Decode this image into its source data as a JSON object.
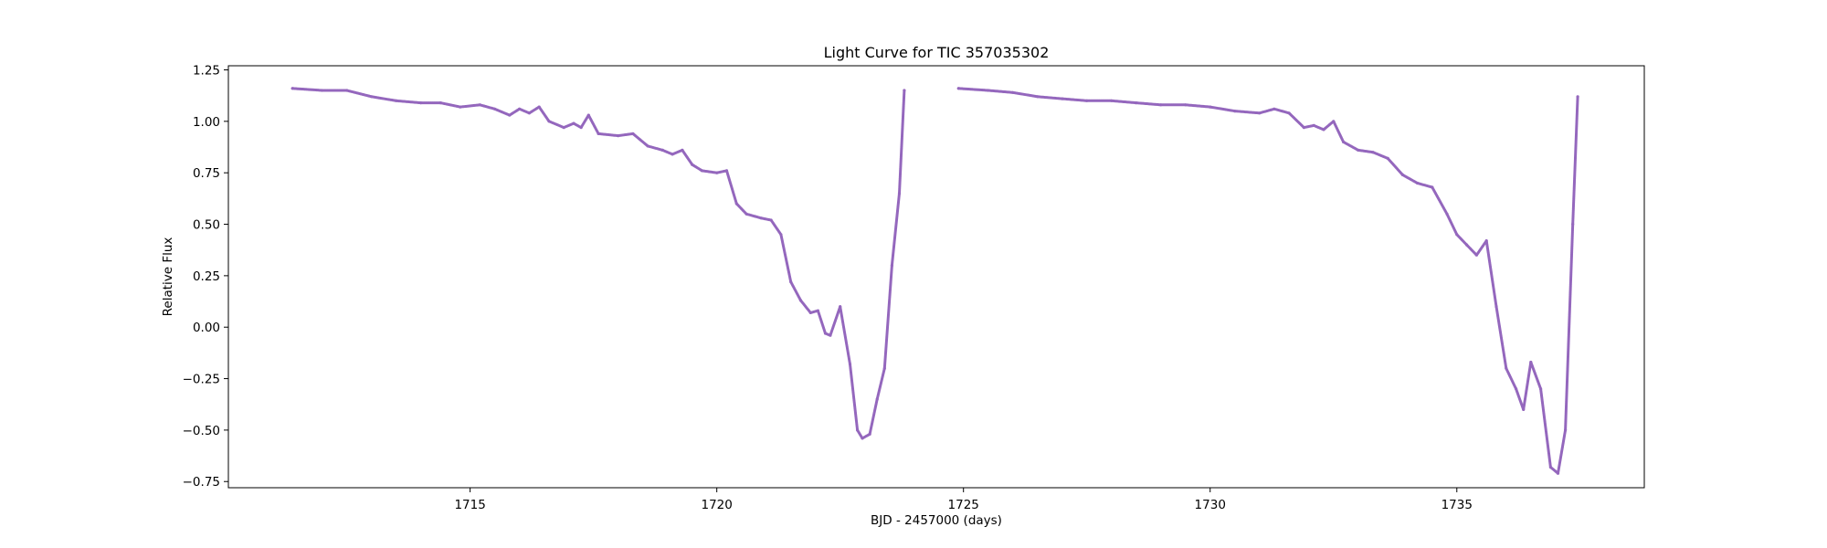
{
  "chart_data": {
    "type": "scatter",
    "title": "Light Curve for TIC 357035302",
    "xlabel": "BJD - 2457000 (days)",
    "ylabel": "Relative Flux",
    "xlim": [
      1710.1,
      1738.8
    ],
    "ylim": [
      -0.78,
      1.27
    ],
    "xticks": [
      1715,
      1720,
      1725,
      1730,
      1735
    ],
    "xtick_labels": [
      "1715",
      "1720",
      "1725",
      "1730",
      "1735"
    ],
    "yticks": [
      -0.75,
      -0.5,
      -0.25,
      0.0,
      0.25,
      0.5,
      0.75,
      1.0,
      1.25
    ],
    "ytick_labels": [
      "−0.75",
      "−0.50",
      "−0.25",
      "0.00",
      "0.25",
      "0.50",
      "0.75",
      "1.00",
      "1.25"
    ],
    "grid": false,
    "marker_color": "#9467bd",
    "series": [
      {
        "x": [
          1711.4,
          1712.0,
          1712.5,
          1713.0,
          1713.5,
          1714.0,
          1714.4,
          1714.8,
          1715.2,
          1715.5,
          1715.8,
          1716.0,
          1716.2,
          1716.4,
          1716.6,
          1716.9,
          1717.1,
          1717.25,
          1717.4,
          1717.6,
          1718.0,
          1718.3,
          1718.6,
          1718.9,
          1719.1,
          1719.3,
          1719.5,
          1719.7,
          1720.0,
          1720.2,
          1720.4,
          1720.6,
          1720.9,
          1721.1,
          1721.3,
          1721.5,
          1721.7,
          1721.9,
          1722.05,
          1722.2,
          1722.3,
          1722.5,
          1722.7,
          1722.85,
          1722.95,
          1723.1,
          1723.25,
          1723.4,
          1723.55,
          1723.7,
          1723.8
        ],
        "y": [
          1.16,
          1.15,
          1.15,
          1.12,
          1.1,
          1.09,
          1.09,
          1.07,
          1.08,
          1.06,
          1.03,
          1.06,
          1.04,
          1.07,
          1.0,
          0.97,
          0.99,
          0.97,
          1.03,
          0.94,
          0.93,
          0.94,
          0.88,
          0.86,
          0.84,
          0.86,
          0.79,
          0.76,
          0.75,
          0.76,
          0.6,
          0.55,
          0.53,
          0.52,
          0.45,
          0.22,
          0.13,
          0.07,
          0.08,
          -0.03,
          -0.04,
          0.1,
          -0.18,
          -0.5,
          -0.54,
          -0.52,
          -0.35,
          -0.2,
          0.3,
          0.65,
          1.15
        ]
      },
      {
        "x": [
          1724.9,
          1725.5,
          1726.0,
          1726.5,
          1727.0,
          1727.5,
          1728.0,
          1728.5,
          1729.0,
          1729.5,
          1730.0,
          1730.5,
          1731.0,
          1731.3,
          1731.6,
          1731.9,
          1732.1,
          1732.3,
          1732.5,
          1732.7,
          1733.0,
          1733.3,
          1733.6,
          1733.9,
          1734.2,
          1734.5,
          1734.8,
          1735.0,
          1735.2,
          1735.4,
          1735.6,
          1735.8,
          1736.0,
          1736.2,
          1736.35,
          1736.5,
          1736.7,
          1736.9,
          1737.05,
          1737.2,
          1737.35,
          1737.45
        ],
        "y": [
          1.16,
          1.15,
          1.14,
          1.12,
          1.11,
          1.1,
          1.1,
          1.09,
          1.08,
          1.08,
          1.07,
          1.05,
          1.04,
          1.06,
          1.04,
          0.97,
          0.98,
          0.96,
          1.0,
          0.9,
          0.86,
          0.85,
          0.82,
          0.74,
          0.7,
          0.68,
          0.55,
          0.45,
          0.4,
          0.35,
          0.42,
          0.1,
          -0.2,
          -0.3,
          -0.4,
          -0.17,
          -0.3,
          -0.68,
          -0.71,
          -0.5,
          0.5,
          1.12
        ]
      }
    ]
  }
}
